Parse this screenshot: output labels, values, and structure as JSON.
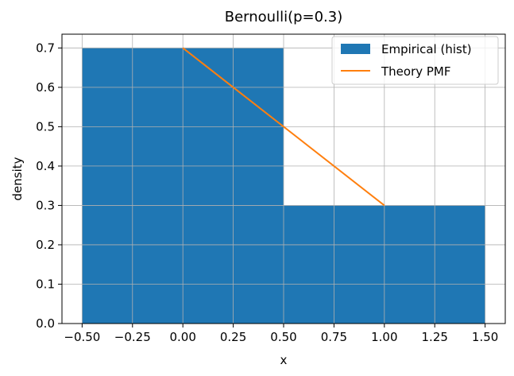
{
  "chart_data": {
    "type": "bar",
    "title": "Bernoulli(p=0.3)",
    "xlabel": "x",
    "ylabel": "density",
    "xlim": [
      -0.6,
      1.6
    ],
    "ylim": [
      0,
      0.735
    ],
    "grid": true,
    "legend_position": "top-right",
    "x_ticks": [
      -0.5,
      -0.25,
      0.0,
      0.25,
      0.5,
      0.75,
      1.0,
      1.25,
      1.5
    ],
    "x_tick_labels": [
      "−0.50",
      "−0.25",
      "0.00",
      "0.25",
      "0.50",
      "0.75",
      "1.00",
      "1.25",
      "1.50"
    ],
    "y_ticks": [
      0.0,
      0.1,
      0.2,
      0.3,
      0.4,
      0.5,
      0.6,
      0.7
    ],
    "y_tick_labels": [
      "0.0",
      "0.1",
      "0.2",
      "0.3",
      "0.4",
      "0.5",
      "0.6",
      "0.7"
    ],
    "histogram": {
      "name": "Empirical (hist)",
      "color": "#1f77b4",
      "bins": [
        {
          "x0": -0.5,
          "x1": 0.5,
          "value": 0.7
        },
        {
          "x0": 0.5,
          "x1": 1.5,
          "value": 0.3
        }
      ]
    },
    "pmf_line": {
      "name": "Theory PMF",
      "color": "#ff7f0e",
      "x": [
        0,
        1
      ],
      "y": [
        0.7,
        0.3
      ]
    }
  }
}
